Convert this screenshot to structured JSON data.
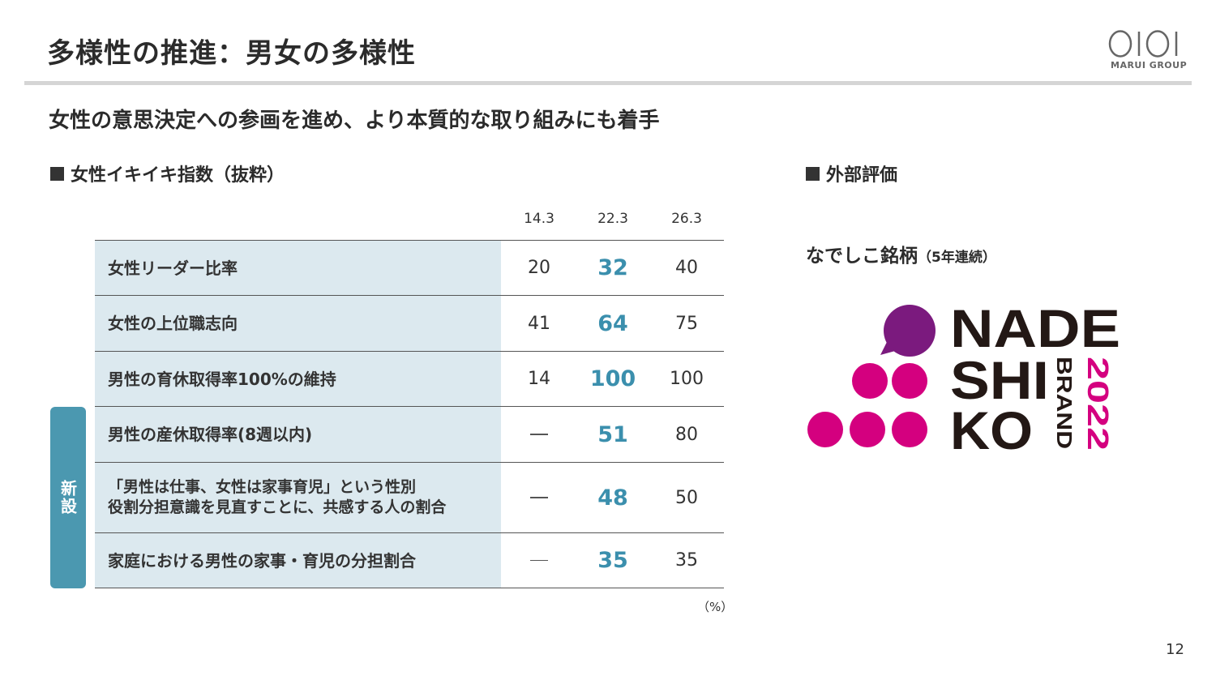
{
  "header": {
    "title": "多様性の推進：男女の多様性",
    "brand_text": "MARUI GROUP"
  },
  "subtitle": "女性の意思決定への参画を進め、より本質的な取り組みにも着手",
  "left_section": {
    "heading": "女性イキイキ指数（抜粋）",
    "columns": [
      "14.3",
      "22.3",
      "26.3"
    ],
    "rows": [
      {
        "label": "女性リーダー比率",
        "v1": "20",
        "v2": "32",
        "v3": "40"
      },
      {
        "label": "女性の上位職志向",
        "v1": "41",
        "v2": "64",
        "v3": "75"
      },
      {
        "label": "男性の育休取得率100%の維持",
        "v1": "14",
        "v2": "100",
        "v3": "100"
      },
      {
        "label": "男性の産休取得率(8週以内)",
        "v1": "",
        "v2": "51",
        "v3": "80"
      },
      {
        "label_line1": "「男性は仕事、女性は家事育児」という性別",
        "label_line2": "役割分担意識を見直すことに、共感する人の割合",
        "v1": "",
        "v2": "48",
        "v3": "50"
      },
      {
        "label": "家庭における男性の家事・育児の分担割合",
        "v1": "",
        "v2": "35",
        "v3": "35"
      }
    ],
    "new_badge": "新設",
    "unit": "（%）"
  },
  "right_section": {
    "heading": "外部評価",
    "award_title": "なでしこ銘柄",
    "award_note": "（5年連続）",
    "logo_text": {
      "line1": "NADE",
      "line2": "SHI",
      "line3": "KO",
      "brand": "BRAND",
      "year": "2022"
    }
  },
  "page_number": "12",
  "colors": {
    "accent": "#3b8fad",
    "badge": "#4b98b0",
    "label_bg": "#dce9ef",
    "purple": "#7b1a7e",
    "magenta": "#d4007f"
  }
}
